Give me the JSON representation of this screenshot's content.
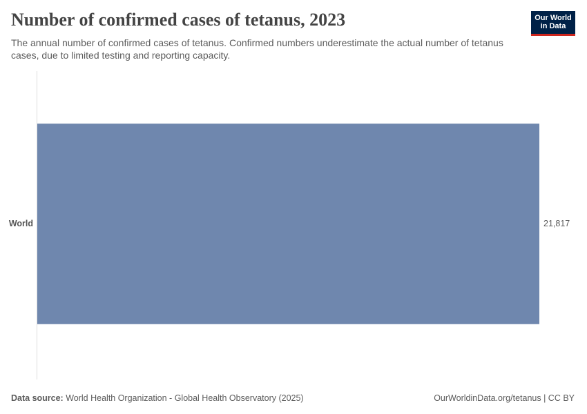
{
  "chart_data": {
    "type": "bar",
    "orientation": "horizontal",
    "title": "Number of confirmed cases of tetanus, 2023",
    "subtitle": "The annual number of confirmed cases of tetanus. Confirmed numbers underestimate the actual number of tetanus cases, due to limited testing and reporting capacity.",
    "logo": [
      "Our World",
      "in Data"
    ],
    "categories": [
      "World"
    ],
    "values": [
      21817
    ],
    "value_labels": [
      "21,817"
    ],
    "color": "#6f87ae",
    "source_label": "Data source:",
    "source": "World Health Organization - Global Health Observatory (2025)",
    "credit": "OurWorldinData.org/tetanus | CC BY"
  }
}
